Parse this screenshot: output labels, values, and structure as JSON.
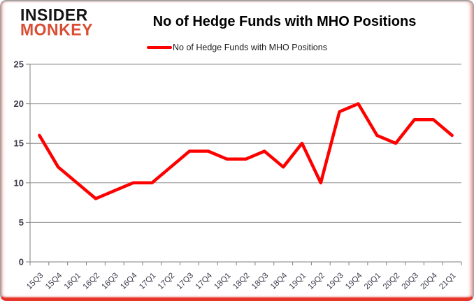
{
  "logo": {
    "line1": "INSIDER",
    "line2": "MONKEY"
  },
  "title": "No of Hedge Funds with MHO Positions",
  "legend": {
    "label": "No of Hedge Funds with MHO Positions",
    "color": "#fe0000"
  },
  "chart_data": {
    "type": "line",
    "title": "No of Hedge Funds with MHO Positions",
    "categories": [
      "15Q3",
      "15Q4",
      "16Q1",
      "16Q2",
      "16Q3",
      "16Q4",
      "17Q1",
      "17Q2",
      "17Q3",
      "17Q4",
      "18Q1",
      "18Q2",
      "18Q3",
      "18Q4",
      "19Q1",
      "19Q2",
      "19Q3",
      "19Q4",
      "20Q1",
      "20Q2",
      "20Q3",
      "20Q4",
      "21Q1"
    ],
    "series": [
      {
        "name": "No of Hedge Funds with MHO Positions",
        "color": "#fe0000",
        "values": [
          16,
          12,
          10,
          8,
          9,
          10,
          10,
          12,
          14,
          14,
          13,
          13,
          14,
          12,
          15,
          10,
          19,
          20,
          16,
          15,
          18,
          18,
          16
        ]
      }
    ],
    "xlabel": "",
    "ylabel": "",
    "ylim": [
      0,
      25
    ],
    "yticks": [
      0,
      5,
      10,
      15,
      20,
      25
    ],
    "grid": true,
    "legend_position": "top",
    "gridline_color": "#8c8c8c",
    "axis_color": "#7f7f7f",
    "tick_label_color": "#3d3d4d"
  }
}
